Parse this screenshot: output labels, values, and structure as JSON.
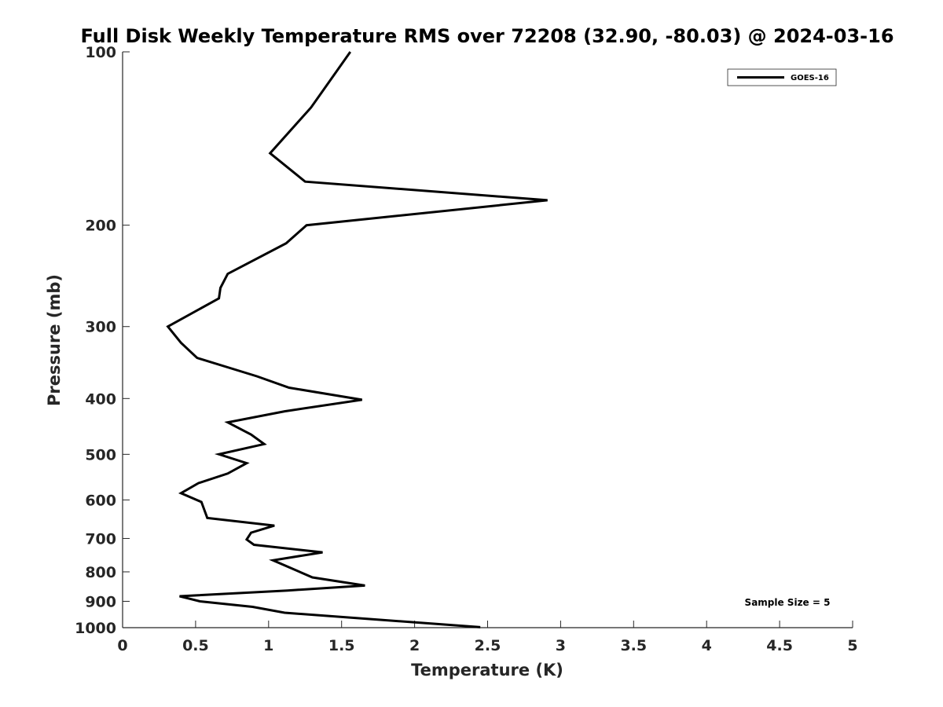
{
  "chart_data": {
    "type": "line",
    "title": "Full Disk Weekly Temperature RMS over 72208 (32.90, -80.03) @ 2024-03-16",
    "xlabel": "Temperature (K)",
    "ylabel": "Pressure (mb)",
    "xlim": [
      0,
      5
    ],
    "ylim": [
      100,
      1000
    ],
    "y_scale": "log",
    "y_reversed": true,
    "grid": false,
    "legend_position": "top-right",
    "x_ticks": [
      "0",
      "0.5",
      "1",
      "1.5",
      "2",
      "2.5",
      "3",
      "3.5",
      "4",
      "4.5",
      "5"
    ],
    "y_ticks": [
      "100",
      "200",
      "300",
      "400",
      "500",
      "600",
      "700",
      "800",
      "900",
      "1000"
    ],
    "series": [
      {
        "name": "GOES-16",
        "color": "#000000",
        "points": [
          [
            1.56,
            100
          ],
          [
            1.29,
            125
          ],
          [
            1.01,
            150
          ],
          [
            1.25,
            168
          ],
          [
            2.91,
            181
          ],
          [
            1.26,
            200
          ],
          [
            1.12,
            215
          ],
          [
            0.72,
            243
          ],
          [
            0.67,
            257
          ],
          [
            0.66,
            268
          ],
          [
            0.31,
            300
          ],
          [
            0.4,
            320
          ],
          [
            0.51,
            340
          ],
          [
            0.92,
            366
          ],
          [
            1.14,
            383
          ],
          [
            1.64,
            402
          ],
          [
            1.11,
            421
          ],
          [
            0.72,
            440
          ],
          [
            0.88,
            462
          ],
          [
            0.97,
            480
          ],
          [
            0.66,
            500
          ],
          [
            0.85,
            518
          ],
          [
            0.72,
            540
          ],
          [
            0.52,
            561
          ],
          [
            0.4,
            584
          ],
          [
            0.54,
            605
          ],
          [
            0.58,
            645
          ],
          [
            1.04,
            665
          ],
          [
            0.88,
            684
          ],
          [
            0.85,
            703
          ],
          [
            0.9,
            718
          ],
          [
            1.37,
            740
          ],
          [
            1.03,
            764
          ],
          [
            1.3,
            818
          ],
          [
            1.66,
            845
          ],
          [
            1.13,
            862
          ],
          [
            0.39,
            882
          ],
          [
            0.53,
            900
          ],
          [
            0.89,
            920
          ],
          [
            1.11,
            942
          ],
          [
            2.45,
            998
          ]
        ]
      }
    ],
    "annotations": [
      "Sample Size = 5"
    ]
  }
}
